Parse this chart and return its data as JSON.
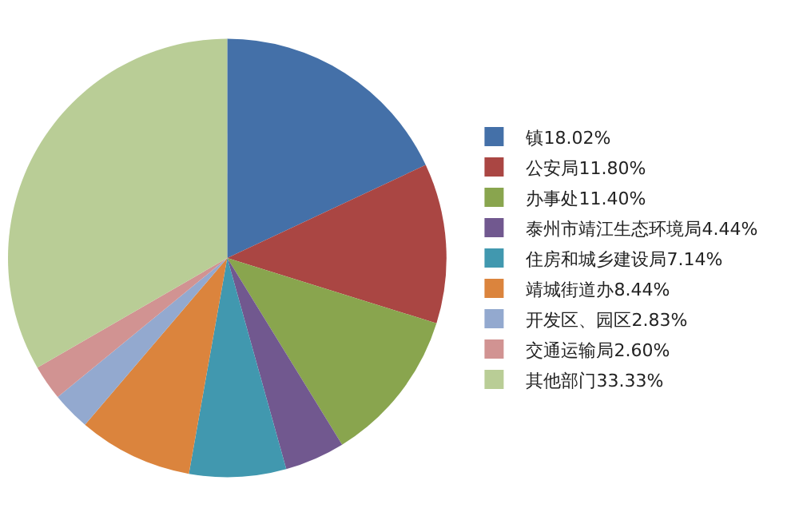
{
  "chart_data": {
    "type": "pie",
    "categories": [
      "镇",
      "公安局",
      "办事处",
      "泰州市靖江生态环境局",
      "住房和城乡建设局",
      "靖城街道办",
      "开发区、园区",
      "交通运输局",
      "其他部门"
    ],
    "values": [
      18.02,
      11.8,
      11.4,
      4.44,
      7.14,
      8.44,
      2.83,
      2.6,
      33.33
    ],
    "value_labels": [
      "18.02%",
      "11.80%",
      "11.40%",
      "4.44%",
      "7.14%",
      "8.44%",
      "2.83%",
      "2.60%",
      "33.33%"
    ],
    "colors": [
      "#4470a8",
      "#aa4643",
      "#89a54e",
      "#71588f",
      "#4198af",
      "#db843d",
      "#93a9cf",
      "#d19392",
      "#b9cd96"
    ],
    "legend": "right"
  }
}
